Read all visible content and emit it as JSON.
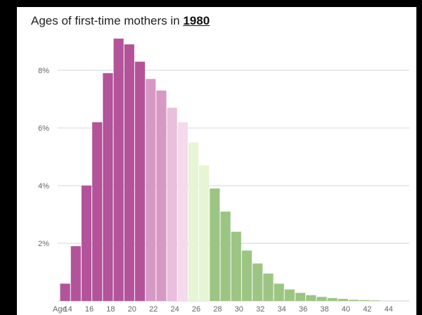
{
  "title": {
    "text": "Ages of first-time mothers in ",
    "year": "1980"
  },
  "chart_data": {
    "type": "bar",
    "title": "Ages of first-time mothers in 1980",
    "xlabel": "",
    "ylabel": "",
    "ylim": [
      0,
      0.095
    ],
    "y_ticks": [
      {
        "value": 0.02,
        "label": "2%"
      },
      {
        "value": 0.04,
        "label": "4%"
      },
      {
        "value": 0.06,
        "label": "6%"
      },
      {
        "value": 0.08,
        "label": "8%"
      }
    ],
    "x_prefix_label": "Age",
    "x_ticks": [
      14,
      16,
      18,
      20,
      22,
      24,
      26,
      28,
      30,
      32,
      34,
      36,
      38,
      40,
      42,
      44
    ],
    "grid": true,
    "categories": [
      14,
      15,
      16,
      17,
      18,
      19,
      20,
      21,
      22,
      23,
      24,
      25,
      26,
      27,
      28,
      29,
      30,
      31,
      32,
      33,
      34,
      35,
      36,
      37,
      38,
      39,
      40,
      41,
      42,
      43
    ],
    "values": [
      0.006,
      0.019,
      0.04,
      0.062,
      0.079,
      0.091,
      0.089,
      0.083,
      0.077,
      0.073,
      0.067,
      0.062,
      0.055,
      0.047,
      0.039,
      0.031,
      0.024,
      0.0175,
      0.013,
      0.0095,
      0.006,
      0.004,
      0.0028,
      0.002,
      0.0014,
      0.001,
      0.0007,
      0.0004,
      0.0003,
      0.0002
    ],
    "colors": [
      "#b3539a",
      "#b3539a",
      "#b3539a",
      "#b3539a",
      "#b3539a",
      "#b3539a",
      "#b3539a",
      "#b3539a",
      "#d699c4",
      "#d699c4",
      "#e8bfdc",
      "#f5d9ec",
      "#e6f5d3",
      "#e6f5d3",
      "#9cc584",
      "#9cc584",
      "#9cc584",
      "#9cc584",
      "#9cc584",
      "#9cc584",
      "#9cc584",
      "#9cc584",
      "#9cc584",
      "#9cc584",
      "#9cc584",
      "#9cc584",
      "#9cc584",
      "#9cc584",
      "#9cc584",
      "#9cc584"
    ]
  }
}
